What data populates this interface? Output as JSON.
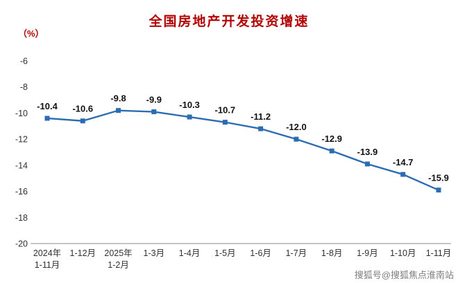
{
  "title": "全国房地产开发投资增速",
  "unit_label": "（%）",
  "watermark": "搜狐号@搜狐焦点淮南站",
  "chart_data": {
    "type": "line",
    "title": "全国房地产开发投资增速",
    "ylabel": "（%）",
    "categories": [
      "2024年\n1-11月",
      "1-12月",
      "2025年\n1-2月",
      "1-3月",
      "1-4月",
      "1-5月",
      "1-6月",
      "1-7月",
      "1-8月",
      "1-9月",
      "1-10月",
      "1-11月"
    ],
    "values": [
      -10.4,
      -10.6,
      -9.8,
      -9.9,
      -10.3,
      -10.7,
      -11.2,
      -12.0,
      -12.9,
      -13.9,
      -14.7,
      -15.9
    ],
    "ylim": [
      -20,
      -6
    ],
    "yticks": [
      -6,
      -8,
      -10,
      -12,
      -14,
      -16,
      -18,
      -20
    ],
    "grid": false,
    "legend": "none",
    "marker": "square",
    "line_color": "#2b6cb3",
    "title_color": "#b20000",
    "axis_color": "#8c8c8c"
  }
}
